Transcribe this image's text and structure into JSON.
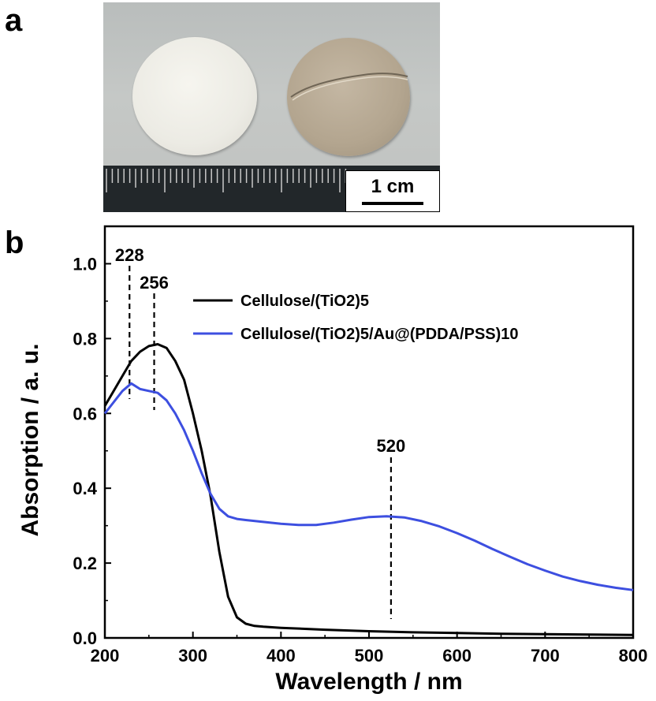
{
  "panels": {
    "a": "a",
    "b": "b"
  },
  "photo": {
    "scale_bar_label": "1 cm"
  },
  "chart_data": {
    "type": "line",
    "xlabel": "Wavelength / nm",
    "ylabel": "Absorption / a. u.",
    "xlim": [
      200,
      800
    ],
    "ylim": [
      0,
      1.1
    ],
    "x_ticks": [
      200,
      300,
      400,
      500,
      600,
      700,
      800
    ],
    "y_ticks": [
      0.0,
      0.2,
      0.4,
      0.6,
      0.8,
      1.0
    ],
    "y_tick_labels": [
      "0.0",
      "0.2",
      "0.4",
      "0.6",
      "0.8",
      "1.0"
    ],
    "legend_position": "top-right",
    "series": [
      {
        "name": "Cellulose/(TiO2)5",
        "color": "#000000",
        "x": [
          200,
          210,
          220,
          230,
          240,
          250,
          260,
          270,
          280,
          290,
          300,
          310,
          320,
          330,
          340,
          350,
          360,
          370,
          380,
          400,
          450,
          500,
          550,
          600,
          650,
          700,
          750,
          800
        ],
        "y": [
          0.62,
          0.66,
          0.7,
          0.74,
          0.765,
          0.78,
          0.785,
          0.775,
          0.74,
          0.69,
          0.6,
          0.5,
          0.38,
          0.23,
          0.11,
          0.055,
          0.038,
          0.032,
          0.03,
          0.027,
          0.022,
          0.018,
          0.015,
          0.013,
          0.011,
          0.01,
          0.009,
          0.008
        ]
      },
      {
        "name": "Cellulose/(TiO2)5/Au@(PDDA/PSS)10",
        "color": "#3d4fe0",
        "x": [
          200,
          210,
          220,
          230,
          240,
          250,
          260,
          270,
          280,
          290,
          300,
          310,
          320,
          330,
          340,
          350,
          360,
          380,
          400,
          420,
          440,
          460,
          480,
          500,
          520,
          540,
          560,
          580,
          600,
          620,
          640,
          660,
          680,
          700,
          720,
          740,
          760,
          780,
          800
        ],
        "y": [
          0.6,
          0.63,
          0.66,
          0.68,
          0.665,
          0.66,
          0.655,
          0.635,
          0.6,
          0.555,
          0.5,
          0.44,
          0.385,
          0.345,
          0.325,
          0.318,
          0.315,
          0.31,
          0.305,
          0.302,
          0.302,
          0.308,
          0.316,
          0.323,
          0.325,
          0.322,
          0.312,
          0.298,
          0.28,
          0.26,
          0.238,
          0.217,
          0.197,
          0.18,
          0.164,
          0.152,
          0.142,
          0.134,
          0.128
        ]
      }
    ],
    "annotations": [
      {
        "label": "228",
        "x": 228
      },
      {
        "label": "256",
        "x": 256
      },
      {
        "label": "520",
        "x": 525
      }
    ]
  }
}
